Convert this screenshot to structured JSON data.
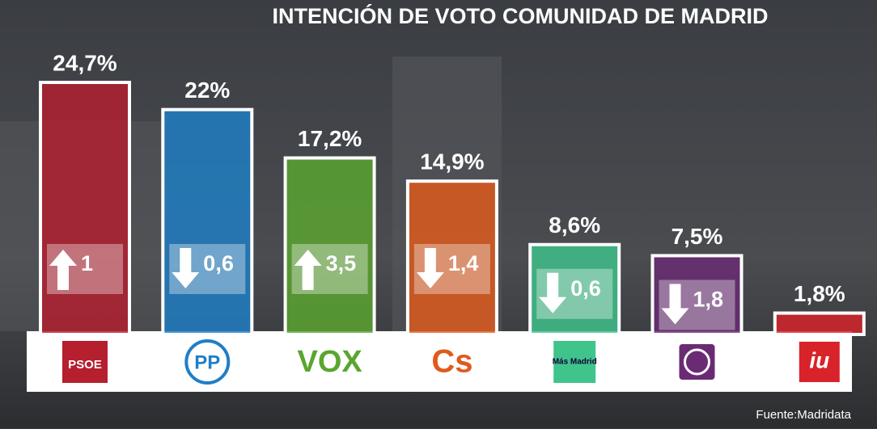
{
  "chart_data": {
    "type": "bar",
    "title": "INTENCIÓN DE VOTO COMUNIDAD DE MADRID",
    "categories": [
      "PSOE",
      "PP",
      "VOX",
      "Cs",
      "Más Madrid",
      null,
      "iu"
    ],
    "values": [
      24.7,
      22,
      17.2,
      14.9,
      8.6,
      7.5,
      1.8
    ],
    "value_labels": [
      "24,7%",
      "22%",
      "17,2%",
      "14,9%",
      "8,6%",
      "7,5%",
      "1,8%"
    ],
    "colors": [
      "#b51f2e",
      "#1f7fc6",
      "#5aa62f",
      "#e05a1c",
      "#3fc48c",
      "#6a2b74",
      "#d8232a"
    ],
    "changes": [
      1,
      -0.6,
      3.5,
      -1.4,
      -0.6,
      -1.8,
      null
    ],
    "change_labels": [
      "1",
      "0,6",
      "3,5",
      "1,4",
      "0,6",
      "1,8",
      null
    ],
    "source": "Fuente:Madridata"
  }
}
